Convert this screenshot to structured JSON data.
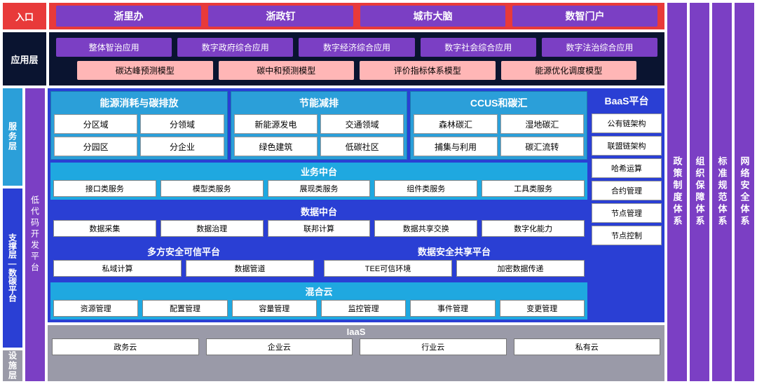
{
  "colors": {
    "red": "#e83a3a",
    "purple": "#7b3fc4",
    "navy": "#0a1430",
    "pink": "#ffb6b6",
    "cyan": "#2b9fd9",
    "lightcyan": "#1fa8e0",
    "blue": "#2a3fd4",
    "grey": "#9a9aa8",
    "white": "#ffffff"
  },
  "entry": {
    "label": "入口",
    "items": [
      "浙里办",
      "浙政钉",
      "城市大脑",
      "数智门户"
    ]
  },
  "app": {
    "label": "应用层",
    "row1": [
      "整体智治应用",
      "数字政府综合应用",
      "数字经济综合应用",
      "数字社会综合应用",
      "数字法治综合应用"
    ],
    "row2": [
      "碳达峰预测模型",
      "碳中和预测模型",
      "评价指标体系模型",
      "能源优化调度模型"
    ]
  },
  "leftLabels": {
    "service": "服务层",
    "support": "支撑层—数碳平台",
    "infra": "设施层",
    "lowcode": "低代码开发平台"
  },
  "svc": {
    "g1": {
      "title": "能源消耗与碳排放",
      "cells": [
        "分区域",
        "分领域",
        "分园区",
        "分企业"
      ]
    },
    "g2": {
      "title": "节能减排",
      "cells": [
        "新能源发电",
        "交通领域",
        "绿色建筑",
        "低碳社区"
      ]
    },
    "g3": {
      "title": "CCUS和碳汇",
      "cells": [
        "森林碳汇",
        "湿地碳汇",
        "捕集与利用",
        "碳汇流转"
      ]
    }
  },
  "baas": {
    "title": "BaaS平台",
    "items": [
      "公有链架构",
      "联盟链架构",
      "哈希运算",
      "合约管理",
      "节点管理",
      "节点控制"
    ]
  },
  "biz": {
    "title": "业务中台",
    "items": [
      "接口类服务",
      "模型类服务",
      "展现类服务",
      "组件类服务",
      "工具类服务"
    ]
  },
  "data": {
    "title": "数据中台",
    "items": [
      "数据采集",
      "数据治理",
      "联邦计算",
      "数据共享交换",
      "数字化能力"
    ]
  },
  "sec1": {
    "title": "多方安全可信平台",
    "items": [
      "私域计算",
      "数据管道"
    ]
  },
  "sec2": {
    "title": "数据安全共享平台",
    "items": [
      "TEE可信环境",
      "加密数据传递"
    ]
  },
  "hybrid": {
    "title": "混合云",
    "items": [
      "资源管理",
      "配置管理",
      "容量管理",
      "监控管理",
      "事件管理",
      "变更管理"
    ]
  },
  "iaas": {
    "title": "IaaS",
    "items": [
      "政务云",
      "企业云",
      "行业云",
      "私有云"
    ]
  },
  "pillars": [
    "政策制度体系",
    "组织保障体系",
    "标准规范体系",
    "网络安全体系"
  ]
}
